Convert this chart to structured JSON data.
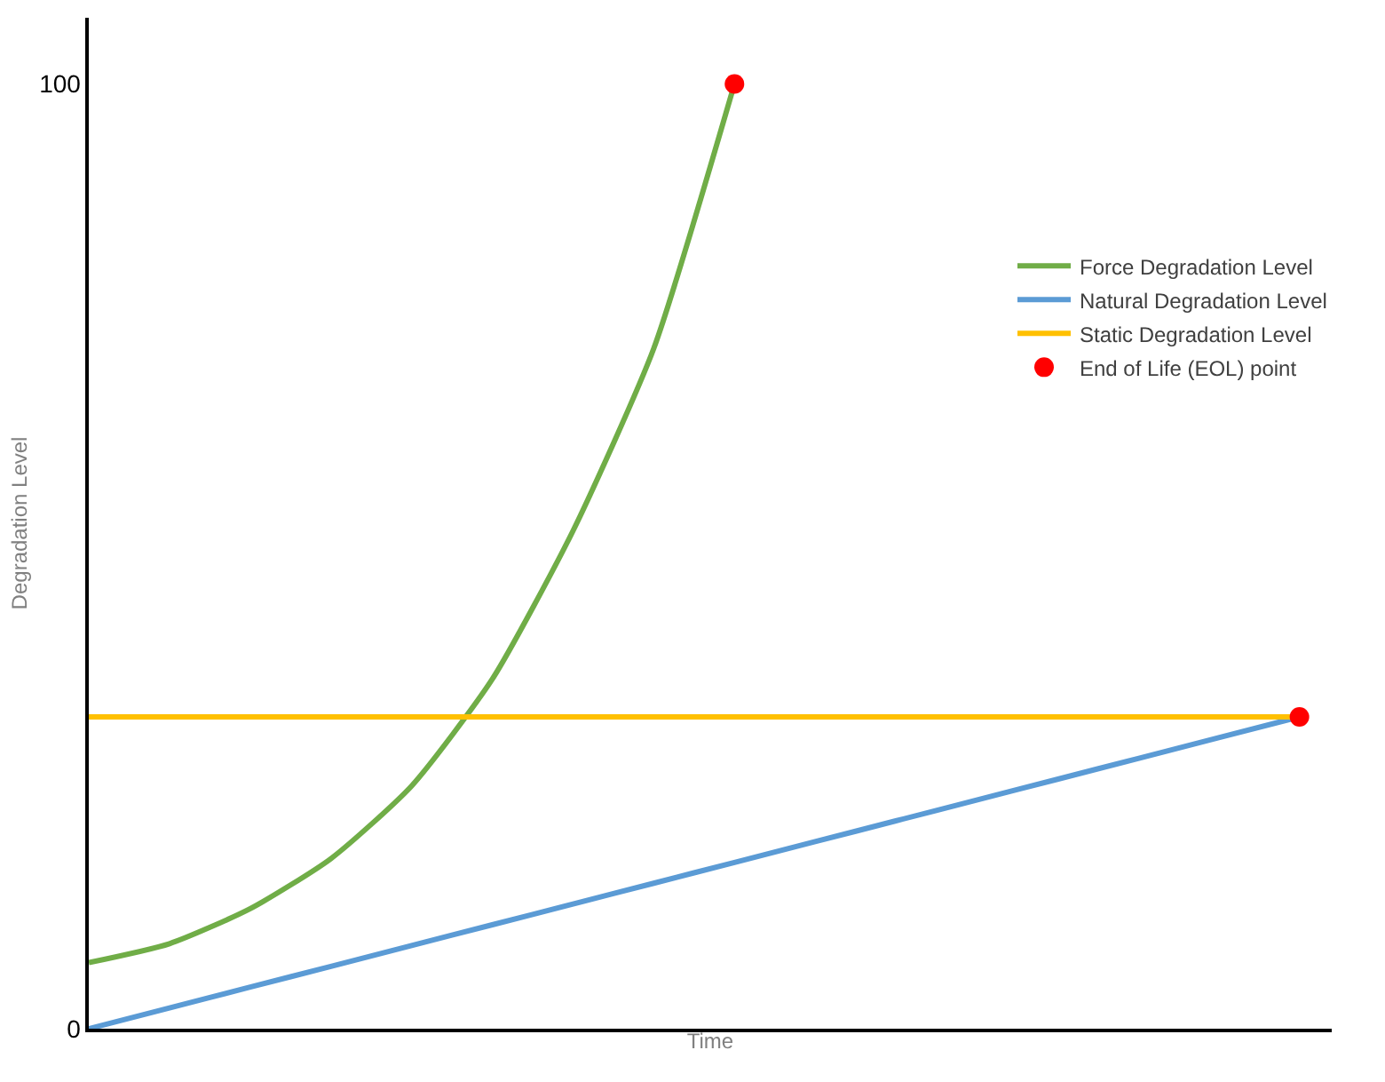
{
  "chart_data": {
    "type": "line",
    "xlabel": "Time",
    "ylabel": "Degradation Level",
    "categories": [
      null,
      null,
      null,
      null,
      null,
      null,
      null,
      null,
      null,
      null,
      null,
      null,
      null,
      null,
      null,
      null
    ],
    "series": [
      {
        "name": "Force Degradation Level",
        "color": "#70ad47",
        "values": [
          7,
          9,
          12.7,
          18,
          25.7,
          37,
          52.7,
          72,
          100,
          null,
          null,
          null,
          null,
          null,
          null,
          null
        ]
      },
      {
        "name": "Natural Degradation Level",
        "color": "#5b9bd5",
        "values": [
          0,
          2.2,
          4.4,
          6.6,
          8.8,
          11,
          13.2,
          15.4,
          17.6,
          19.8,
          22,
          24.2,
          26.4,
          28.6,
          30.8,
          33
        ]
      },
      {
        "name": "Static Degradation Level",
        "color": "#ffc000",
        "values": [
          33,
          33,
          33,
          33,
          33,
          33,
          33,
          33,
          33,
          33,
          33,
          33,
          33,
          33,
          33,
          33
        ]
      },
      {
        "name": "End of Life (EOL) point",
        "color": "#ff0000",
        "type": "scatter",
        "marker": "circle",
        "values": [
          null,
          null,
          null,
          null,
          null,
          null,
          null,
          null,
          100,
          null,
          null,
          null,
          null,
          null,
          null,
          33
        ]
      }
    ],
    "ylim": [
      0,
      107
    ],
    "yticks": [
      0,
      100
    ],
    "tick_labels": "y",
    "grid": false,
    "legend": "right",
    "line_style": "solid",
    "marker": "none"
  }
}
